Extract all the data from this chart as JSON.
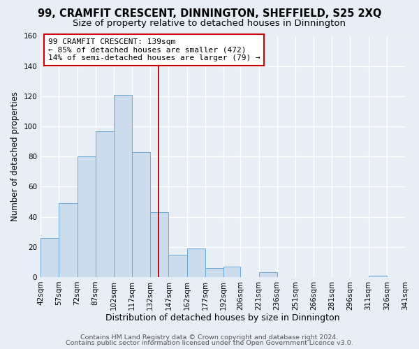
{
  "title": "99, CRAMFIT CRESCENT, DINNINGTON, SHEFFIELD, S25 2XQ",
  "subtitle": "Size of property relative to detached houses in Dinnington",
  "xlabel": "Distribution of detached houses by size in Dinnington",
  "ylabel": "Number of detached properties",
  "bar_edges": [
    42,
    57,
    72,
    87,
    102,
    117,
    132,
    147,
    162,
    177,
    192,
    206,
    221,
    236,
    251,
    266,
    281,
    296,
    311,
    326,
    341
  ],
  "bar_heights": [
    26,
    49,
    80,
    97,
    121,
    83,
    43,
    15,
    19,
    6,
    7,
    0,
    3,
    0,
    0,
    0,
    0,
    0,
    1,
    0
  ],
  "bar_color": "#ccdcec",
  "bar_edge_color": "#6aaad4",
  "tick_labels": [
    "42sqm",
    "57sqm",
    "72sqm",
    "87sqm",
    "102sqm",
    "117sqm",
    "132sqm",
    "147sqm",
    "162sqm",
    "177sqm",
    "192sqm",
    "206sqm",
    "221sqm",
    "236sqm",
    "251sqm",
    "266sqm",
    "281sqm",
    "296sqm",
    "311sqm",
    "326sqm",
    "341sqm"
  ],
  "ylim": [
    0,
    160
  ],
  "yticks": [
    0,
    20,
    40,
    60,
    80,
    100,
    120,
    140,
    160
  ],
  "vline_x": 139,
  "vline_color": "#aa0000",
  "annotation_title": "99 CRAMFIT CRESCENT: 139sqm",
  "annotation_line1": "← 85% of detached houses are smaller (472)",
  "annotation_line2": "14% of semi-detached houses are larger (79) →",
  "annotation_box_color": "#ffffff",
  "annotation_box_edgecolor": "#cc0000",
  "footer1": "Contains HM Land Registry data © Crown copyright and database right 2024.",
  "footer2": "Contains public sector information licensed under the Open Government Licence v3.0.",
  "background_color": "#e8eef5",
  "plot_background_color": "#e8eef5",
  "grid_color": "#ffffff",
  "title_fontsize": 10.5,
  "subtitle_fontsize": 9.5,
  "xlabel_fontsize": 9,
  "ylabel_fontsize": 8.5,
  "tick_fontsize": 7.5,
  "footer_fontsize": 6.8
}
